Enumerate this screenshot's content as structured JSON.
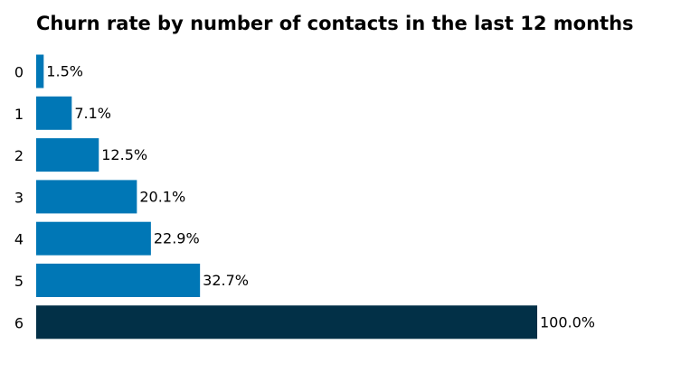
{
  "chart_data": {
    "type": "bar",
    "orientation": "horizontal",
    "title": "Churn rate by number of contacts in the last 12 months",
    "xlabel": "",
    "ylabel": "",
    "categories": [
      "0",
      "1",
      "2",
      "3",
      "4",
      "5",
      "6"
    ],
    "values": [
      1.5,
      7.1,
      12.5,
      20.1,
      22.9,
      32.7,
      100.0
    ],
    "data_labels": [
      "1.5%",
      "7.1%",
      "12.5%",
      "20.1%",
      "22.9%",
      "32.7%",
      "100.0%"
    ],
    "xlim": [
      0,
      100
    ],
    "grid": false,
    "legend": "none",
    "colors": {
      "default_bar": "#0077b6",
      "highlight_bar": "#023047",
      "text": "#000000"
    },
    "highlight_category": "6"
  }
}
